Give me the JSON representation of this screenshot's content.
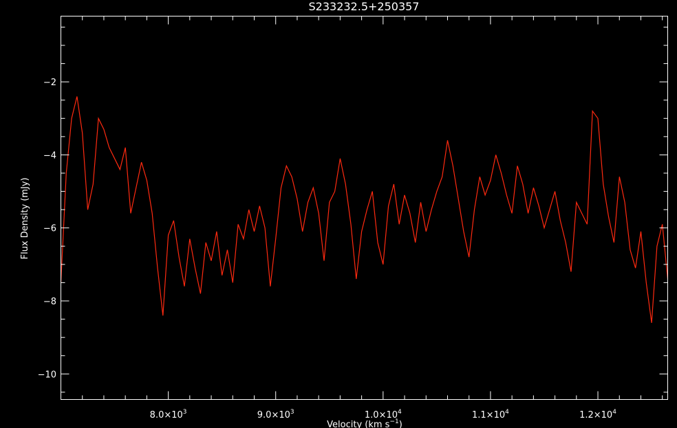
{
  "chart_data": {
    "type": "line",
    "title": "S233232.5+250357",
    "xlabel": "Velocity (km s",
    "xlabel_sup": "−1",
    "xlabel_close": ")",
    "ylabel": "Flux Density (mJy)",
    "xlim": [
      7000,
      12650
    ],
    "ylim": [
      -10.7,
      -0.2
    ],
    "x_ticks": [
      {
        "value": 8000,
        "mant": "8.0",
        "exp": "3"
      },
      {
        "value": 9000,
        "mant": "9.0",
        "exp": "3"
      },
      {
        "value": 10000,
        "mant": "1.0",
        "exp": "4"
      },
      {
        "value": 11000,
        "mant": "1.1",
        "exp": "4"
      },
      {
        "value": 12000,
        "mant": "1.2",
        "exp": "4"
      }
    ],
    "y_ticks": [
      {
        "value": -2,
        "label": "−2"
      },
      {
        "value": -4,
        "label": "−4"
      },
      {
        "value": -6,
        "label": "−6"
      },
      {
        "value": -8,
        "label": "−8"
      },
      {
        "value": -10,
        "label": "−10"
      }
    ],
    "grid": false,
    "series": [
      {
        "color": "#ff2a10",
        "x": [
          7000,
          7050,
          7100,
          7150,
          7200,
          7250,
          7300,
          7350,
          7400,
          7450,
          7500,
          7550,
          7600,
          7650,
          7700,
          7750,
          7800,
          7850,
          7900,
          7950,
          8000,
          8050,
          8100,
          8150,
          8200,
          8250,
          8300,
          8350,
          8400,
          8450,
          8500,
          8550,
          8600,
          8650,
          8700,
          8750,
          8800,
          8850,
          8900,
          8950,
          9000,
          9050,
          9100,
          9150,
          9200,
          9250,
          9300,
          9350,
          9400,
          9450,
          9500,
          9550,
          9600,
          9650,
          9700,
          9750,
          9800,
          9850,
          9900,
          9950,
          10000,
          10050,
          10100,
          10150,
          10200,
          10250,
          10300,
          10350,
          10400,
          10450,
          10500,
          10550,
          10600,
          10650,
          10700,
          10750,
          10800,
          10850,
          10900,
          10950,
          11000,
          11050,
          11100,
          11150,
          11200,
          11250,
          11300,
          11350,
          11400,
          11450,
          11500,
          11550,
          11600,
          11650,
          11700,
          11750,
          11800,
          11850,
          11900,
          11950,
          12000,
          12050,
          12100,
          12150,
          12200,
          12250,
          12300,
          12350,
          12400,
          12450,
          12500,
          12550,
          12600,
          12650
        ],
        "y": [
          -7.5,
          -4.5,
          -3.0,
          -2.4,
          -3.4,
          -5.5,
          -4.8,
          -3.0,
          -3.3,
          -3.8,
          -4.1,
          -4.4,
          -3.8,
          -5.6,
          -4.9,
          -4.2,
          -4.7,
          -5.6,
          -7.1,
          -8.4,
          -6.2,
          -5.8,
          -6.8,
          -7.6,
          -6.3,
          -7.1,
          -7.8,
          -6.4,
          -6.9,
          -6.1,
          -7.3,
          -6.6,
          -7.5,
          -5.9,
          -6.3,
          -5.5,
          -6.1,
          -5.4,
          -6.0,
          -7.6,
          -6.3,
          -4.9,
          -4.3,
          -4.6,
          -5.2,
          -6.1,
          -5.3,
          -4.9,
          -5.6,
          -6.9,
          -5.3,
          -5.0,
          -4.1,
          -4.8,
          -5.9,
          -7.4,
          -6.1,
          -5.5,
          -5.0,
          -6.4,
          -7.0,
          -5.4,
          -4.8,
          -5.9,
          -5.1,
          -5.6,
          -6.4,
          -5.3,
          -6.1,
          -5.5,
          -5.0,
          -4.6,
          -3.6,
          -4.3,
          -5.2,
          -6.1,
          -6.8,
          -5.5,
          -4.6,
          -5.1,
          -4.7,
          -4.0,
          -4.5,
          -5.1,
          -5.6,
          -4.3,
          -4.8,
          -5.6,
          -4.9,
          -5.4,
          -6.0,
          -5.5,
          -5.0,
          -5.8,
          -6.4,
          -7.2,
          -5.3,
          -5.6,
          -5.9,
          -2.8,
          -3.0,
          -4.8,
          -5.7,
          -6.4,
          -4.6,
          -5.3,
          -6.6,
          -7.1,
          -6.1,
          -7.5,
          -8.6,
          -6.5,
          -5.9,
          -7.4
        ]
      }
    ]
  }
}
